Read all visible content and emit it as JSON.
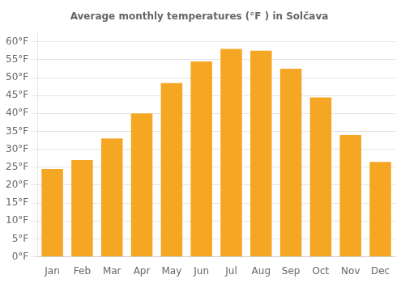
{
  "chart_data": {
    "type": "bar",
    "title": "Average monthly temperatures (°F ) in Solčava",
    "categories": [
      "Jan",
      "Feb",
      "Mar",
      "Apr",
      "May",
      "Jun",
      "Jul",
      "Aug",
      "Sep",
      "Oct",
      "Nov",
      "Dec"
    ],
    "values": [
      24.5,
      27.0,
      33.0,
      40.0,
      48.5,
      54.5,
      58.0,
      57.5,
      52.5,
      44.5,
      34.0,
      26.5
    ],
    "color": "#F5A623",
    "ylim": [
      0,
      63
    ],
    "yticks": [
      {
        "value": 0,
        "label": "0°F"
      },
      {
        "value": 5,
        "label": "5°F"
      },
      {
        "value": 10,
        "label": "10°F"
      },
      {
        "value": 15,
        "label": "15°F"
      },
      {
        "value": 20,
        "label": "20°F"
      },
      {
        "value": 25,
        "label": "25°F"
      },
      {
        "value": 30,
        "label": "30°F"
      },
      {
        "value": 35,
        "label": "35°F"
      },
      {
        "value": 40,
        "label": "40°F"
      },
      {
        "value": 45,
        "label": "45°F"
      },
      {
        "value": 50,
        "label": "50°F"
      },
      {
        "value": 55,
        "label": "55°F"
      },
      {
        "value": 60,
        "label": "60°F"
      }
    ],
    "grid": true
  }
}
